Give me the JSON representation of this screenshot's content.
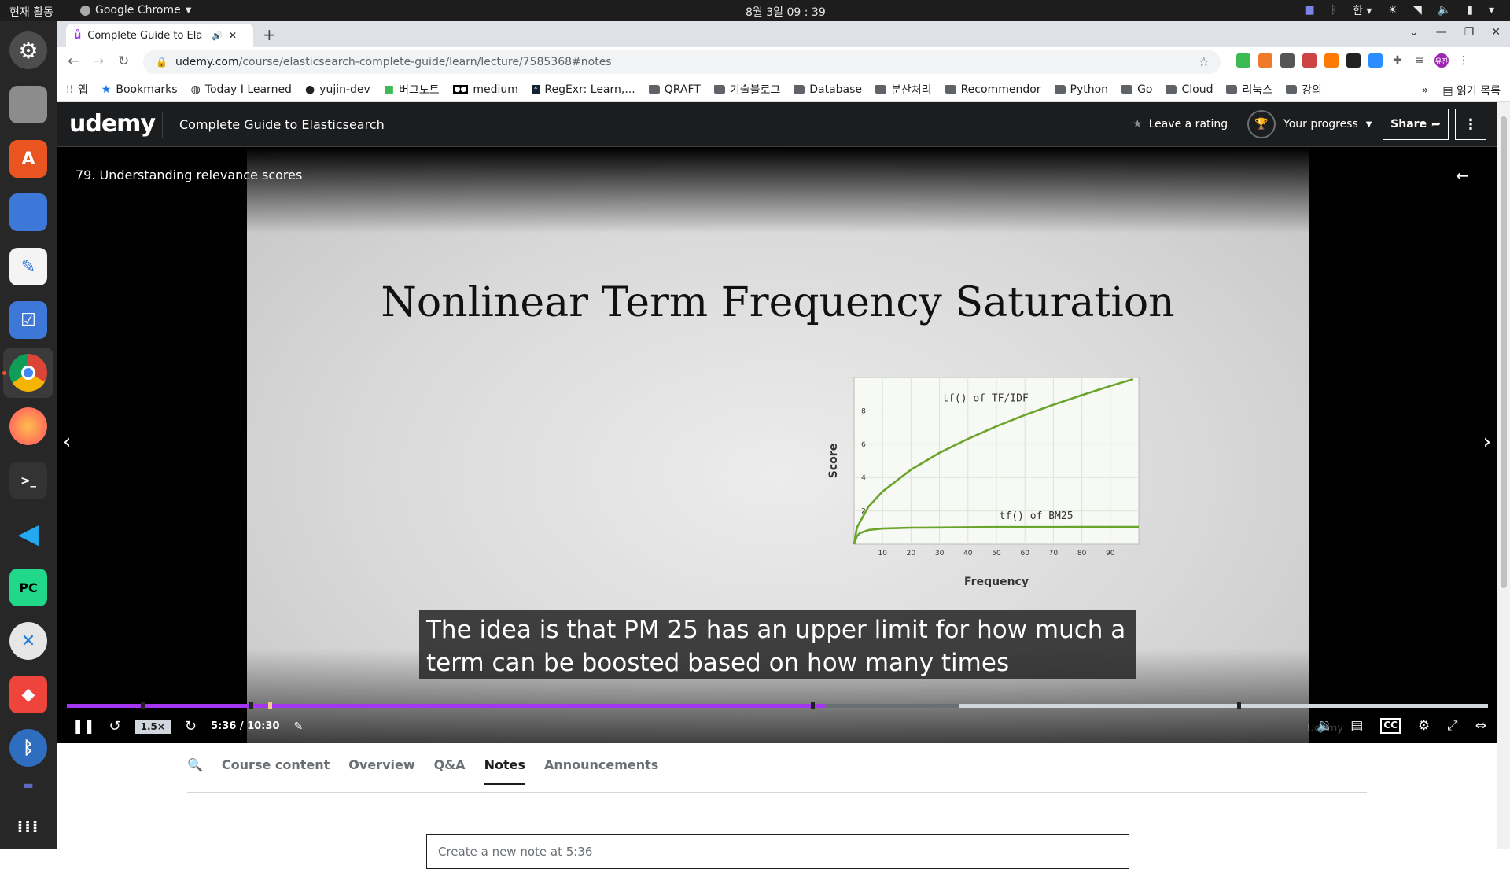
{
  "topbar": {
    "activities": "현재 활동",
    "app_name": "Google Chrome",
    "clock": "8월 3일 09 : 39",
    "ime": "한"
  },
  "browser": {
    "tab_title": "Complete Guide to Ela",
    "url_host": "udemy.com",
    "url_path": "/course/elasticsearch-complete-guide/learn/lecture/7585368#notes",
    "bookmarks": [
      {
        "label": "앱",
        "icon": "apps-grid-icon"
      },
      {
        "label": "Bookmarks",
        "icon": "star-icon"
      },
      {
        "label": "Today I Learned",
        "icon": "globe-icon"
      },
      {
        "label": "yujin-dev",
        "icon": "github-icon"
      },
      {
        "label": "버그노트",
        "icon": "note-icon"
      },
      {
        "label": "medium",
        "icon": "medium-icon"
      },
      {
        "label": "RegExr: Learn,...",
        "icon": "regex-icon"
      },
      {
        "label": "QRAFT",
        "icon": "folder-icon"
      },
      {
        "label": "기술블로그",
        "icon": "folder-icon"
      },
      {
        "label": "Database",
        "icon": "folder-icon"
      },
      {
        "label": "분산처리",
        "icon": "folder-icon"
      },
      {
        "label": "Recommendor",
        "icon": "folder-icon"
      },
      {
        "label": "Python",
        "icon": "folder-icon"
      },
      {
        "label": "Go",
        "icon": "folder-icon"
      },
      {
        "label": "Cloud",
        "icon": "folder-icon"
      },
      {
        "label": "리눅스",
        "icon": "folder-icon"
      },
      {
        "label": "강의",
        "icon": "folder-icon"
      }
    ],
    "reading_list": "읽기 목록",
    "more": "»",
    "profile": "유진"
  },
  "udemy": {
    "logo": "udemy",
    "course_title": "Complete Guide to Elasticsearch",
    "leave_rating": "Leave a rating",
    "your_progress": "Your progress",
    "share": "Share"
  },
  "video": {
    "lecture_title": "79. Understanding relevance scores",
    "slide_title": "Nonlinear Term Frequency Saturation",
    "caption": "The idea is that PM 25 has an upper limit for how much a term can be boosted based on how many times",
    "speed": "1.5×",
    "time": "5:36 / 10:30",
    "progress": 0.534,
    "buffered": 0.628,
    "watermark": "Udemy"
  },
  "chart_data": {
    "type": "line",
    "xlabel": "Frequency",
    "ylabel": "Score",
    "xlim": [
      0,
      100
    ],
    "ylim": [
      0,
      10
    ],
    "x_ticks": [
      10,
      20,
      30,
      40,
      50,
      60,
      70,
      80,
      90
    ],
    "y_ticks": [
      2,
      4,
      6,
      8
    ],
    "grid": true,
    "series": [
      {
        "name": "tf() of TF/IDF",
        "color": "#6aa42a",
        "x": [
          0,
          1,
          5,
          10,
          20,
          30,
          40,
          50,
          60,
          70,
          80,
          90,
          98
        ],
        "y": [
          0,
          1,
          2.24,
          3.16,
          4.47,
          5.48,
          6.32,
          7.07,
          7.75,
          8.37,
          8.94,
          9.49,
          9.9
        ]
      },
      {
        "name": "tf() of BM25",
        "color": "#6aa42a",
        "x": [
          0,
          1,
          2,
          5,
          10,
          20,
          30,
          40,
          50,
          60,
          70,
          80,
          90,
          100
        ],
        "y": [
          0,
          0.48,
          0.66,
          0.85,
          0.94,
          0.99,
          1.0,
          1.02,
          1.03,
          1.03,
          1.03,
          1.04,
          1.04,
          1.04
        ]
      }
    ]
  },
  "below": {
    "tabs": [
      "Course content",
      "Overview",
      "Q&A",
      "Notes",
      "Announcements"
    ],
    "active_tab": "Notes",
    "note_placeholder": "Create a new note at 5:36"
  }
}
